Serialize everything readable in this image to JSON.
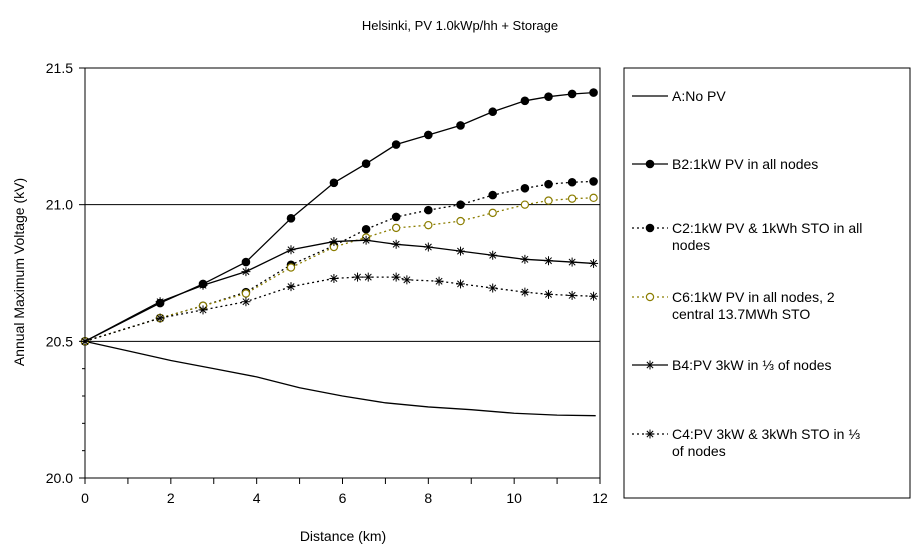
{
  "chart_data": {
    "type": "line",
    "title": "Helsinki, PV 1.0kWp/hh + Storage",
    "xlabel": "Distance (km)",
    "ylabel": "Annual Maximum Voltage (kV)",
    "xlim": [
      0,
      12
    ],
    "ylim": [
      20.0,
      21.5
    ],
    "x_ticks": [
      0,
      2,
      4,
      6,
      8,
      10,
      12
    ],
    "x_tick_labels": [
      "0",
      "2",
      "4",
      "6",
      "8",
      "10",
      "12"
    ],
    "y_ticks": [
      20.0,
      20.5,
      21.0,
      21.5
    ],
    "y_tick_labels": [
      "20.0",
      "20.5",
      "21.0",
      "21.5"
    ],
    "grid": "horizontal major gridlines",
    "legend_position": "right",
    "series": [
      {
        "name": "A:No PV",
        "style": "solid",
        "marker": "none",
        "color": "#000000",
        "points": [
          [
            0,
            20.5
          ],
          [
            1,
            20.465
          ],
          [
            2,
            20.43
          ],
          [
            3,
            20.4
          ],
          [
            4,
            20.37
          ],
          [
            5,
            20.33
          ],
          [
            6,
            20.3
          ],
          [
            7,
            20.275
          ],
          [
            8,
            20.26
          ],
          [
            9,
            20.25
          ],
          [
            10,
            20.237
          ],
          [
            11,
            20.23
          ],
          [
            11.9,
            20.228
          ]
        ]
      },
      {
        "name": "B2:1kW PV in all nodes",
        "style": "solid",
        "marker": "filled-circle",
        "color": "#000000",
        "points": [
          [
            0,
            20.5
          ],
          [
            1.75,
            20.64
          ],
          [
            2.75,
            20.71
          ],
          [
            3.75,
            20.79
          ],
          [
            4.8,
            20.95
          ],
          [
            5.8,
            21.08
          ],
          [
            6.55,
            21.15
          ],
          [
            7.25,
            21.22
          ],
          [
            8,
            21.255
          ],
          [
            8.75,
            21.29
          ],
          [
            9.5,
            21.34
          ],
          [
            10.25,
            21.38
          ],
          [
            10.8,
            21.395
          ],
          [
            11.35,
            21.405
          ],
          [
            11.85,
            21.41
          ]
        ]
      },
      {
        "name": "C2:1kW PV & 1kWh STO in all nodes",
        "style": "dotted",
        "marker": "filled-circle",
        "color": "#000000",
        "points": [
          [
            0,
            20.5
          ],
          [
            1.75,
            20.585
          ],
          [
            2.75,
            20.63
          ],
          [
            3.75,
            20.68
          ],
          [
            4.8,
            20.78
          ],
          [
            5.8,
            20.85
          ],
          [
            6.55,
            20.91
          ],
          [
            7.25,
            20.955
          ],
          [
            8,
            20.98
          ],
          [
            8.75,
            21.0
          ],
          [
            9.5,
            21.035
          ],
          [
            10.25,
            21.06
          ],
          [
            10.8,
            21.075
          ],
          [
            11.35,
            21.082
          ],
          [
            11.85,
            21.085
          ]
        ]
      },
      {
        "name": "C6:1kW PV in all nodes, 2 central 13.7MWh STO",
        "style": "dotted",
        "marker": "open-circle",
        "color": "#8b7d00",
        "points": [
          [
            0,
            20.5
          ],
          [
            1.75,
            20.585
          ],
          [
            2.75,
            20.63
          ],
          [
            3.75,
            20.675
          ],
          [
            4.8,
            20.77
          ],
          [
            5.8,
            20.845
          ],
          [
            6.55,
            20.88
          ],
          [
            7.25,
            20.915
          ],
          [
            8,
            20.925
          ],
          [
            8.75,
            20.94
          ],
          [
            9.5,
            20.97
          ],
          [
            10.25,
            21.0
          ],
          [
            10.8,
            21.015
          ],
          [
            11.35,
            21.022
          ],
          [
            11.85,
            21.025
          ]
        ]
      },
      {
        "name": "B4:PV 3kW in ⅓ of nodes",
        "style": "solid",
        "marker": "asterisk",
        "color": "#000000",
        "points": [
          [
            0,
            20.5
          ],
          [
            1.75,
            20.645
          ],
          [
            2.75,
            20.705
          ],
          [
            3.75,
            20.755
          ],
          [
            4.8,
            20.835
          ],
          [
            5.8,
            20.865
          ],
          [
            6.55,
            20.87
          ],
          [
            7.25,
            20.855
          ],
          [
            8,
            20.845
          ],
          [
            8.75,
            20.83
          ],
          [
            9.5,
            20.815
          ],
          [
            10.25,
            20.8
          ],
          [
            10.8,
            20.795
          ],
          [
            11.35,
            20.79
          ],
          [
            11.85,
            20.785
          ]
        ]
      },
      {
        "name": "C4:PV 3kW & 3kWh STO in ⅓ of nodes",
        "style": "dotted",
        "marker": "asterisk",
        "color": "#000000",
        "points": [
          [
            0,
            20.5
          ],
          [
            1.75,
            20.585
          ],
          [
            2.75,
            20.615
          ],
          [
            3.75,
            20.645
          ],
          [
            4.8,
            20.7
          ],
          [
            5.8,
            20.73
          ],
          [
            6.35,
            20.735
          ],
          [
            6.6,
            20.735
          ],
          [
            7.25,
            20.735
          ],
          [
            7.5,
            20.725
          ],
          [
            8.25,
            20.72
          ],
          [
            8.75,
            20.71
          ],
          [
            9.5,
            20.695
          ],
          [
            10.25,
            20.68
          ],
          [
            10.8,
            20.672
          ],
          [
            11.35,
            20.668
          ],
          [
            11.85,
            20.665
          ]
        ]
      }
    ]
  }
}
